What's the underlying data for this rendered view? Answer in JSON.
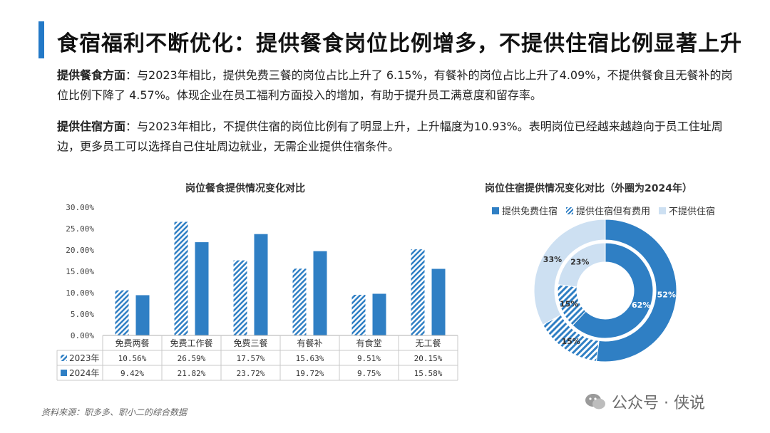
{
  "title": "食宿福利不断优化：提供餐食岗位比例增多，不提供住宿比例显著上升",
  "para1": {
    "label": "提供餐食方面",
    "text": "：与2023年相比，提供免费三餐的岗位占比上升了 6.15%，有餐补的岗位占比上升了4.09%，不提供餐食且无餐补的岗位比例下降了 4.57%。体现企业在员工福利方面投入的增加，有助于提升员工满意度和留存率。"
  },
  "para2": {
    "label": "提供住宿方面",
    "text": "：与2023年相比，不提供住宿的岗位比例有了明显上升，上升幅度为10.93%。表明岗位已经越来越趋向于员工住址周边，更多员工可以选择自己住址周边就业，无需企业提供住宿条件。"
  },
  "source": "资料来源：职多多、职小二的综合数据",
  "watermark": "公众号 · 侠说",
  "chart_data": [
    {
      "type": "bar",
      "title": "岗位餐食提供情况变化对比",
      "categories": [
        "免费两餐",
        "免费工作餐",
        "免费三餐",
        "有餐补",
        "有食堂",
        "无工餐"
      ],
      "series": [
        {
          "name": "2023年",
          "values": [
            10.56,
            26.59,
            17.57,
            15.63,
            9.51,
            20.15
          ],
          "labels": [
            "10.56%",
            "26.59%",
            "17.57%",
            "15.63%",
            "9.51%",
            "20.15%"
          ],
          "style": "hatched",
          "color": "#2f7fc4"
        },
        {
          "name": "2024年",
          "values": [
            9.42,
            21.82,
            23.72,
            19.72,
            9.75,
            15.58
          ],
          "labels": [
            "9.42%",
            "21.82%",
            "23.72%",
            "19.72%",
            "9.75%",
            "15.58%"
          ],
          "style": "solid",
          "color": "#2f7fc4"
        }
      ],
      "yticks": [
        "0.00%",
        "5.00%",
        "10.00%",
        "15.00%",
        "20.00%",
        "25.00%",
        "30.00%"
      ],
      "ylim": [
        0,
        30
      ],
      "data_table": true
    },
    {
      "type": "pie",
      "title": "岗位住宿提供情况变化对比（外圈为2024年）",
      "legend": [
        {
          "name": "提供免费住宿",
          "style": "solid"
        },
        {
          "name": "提供住宿但有费用",
          "style": "hatched"
        },
        {
          "name": "不提供住宿",
          "style": "light"
        }
      ],
      "outer": {
        "year": "2024年",
        "values": [
          52,
          15,
          33
        ],
        "labels": [
          "52%",
          "15%",
          "33%"
        ]
      },
      "inner": {
        "year": "2023年",
        "values": [
          62,
          15,
          23
        ],
        "labels": [
          "62%",
          "15%",
          "23%"
        ]
      },
      "colors": {
        "solid": "#2f7fc4",
        "hatched": "#2f7fc4",
        "light": "#cde0f2"
      }
    }
  ]
}
